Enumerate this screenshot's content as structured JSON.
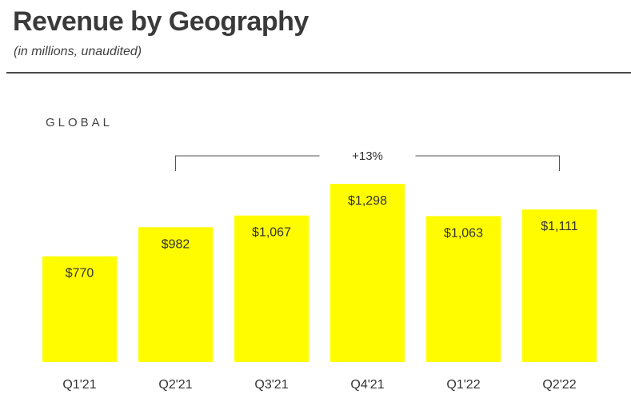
{
  "title": "Revenue by Geography",
  "subtitle": "(in millions, unaudited)",
  "section_label": "GLOBAL",
  "colors": {
    "bar": "#FFFC00",
    "text": "#333333",
    "bracket": "#555555"
  },
  "chart_data": {
    "type": "bar",
    "categories": [
      "Q1'21",
      "Q2'21",
      "Q3'21",
      "Q4'21",
      "Q1'22",
      "Q2'22"
    ],
    "values": [
      770,
      982,
      1067,
      1298,
      1063,
      1111
    ],
    "data_labels": [
      "$770",
      "$982",
      "$1,067",
      "$1,298",
      "$1,063",
      "$1,111"
    ],
    "ylim": [
      0,
      1298
    ],
    "annotation": {
      "text": "+13%",
      "from_category": "Q2'21",
      "to_category": "Q2'22"
    },
    "xlabel": "",
    "ylabel": "",
    "grid": false
  }
}
